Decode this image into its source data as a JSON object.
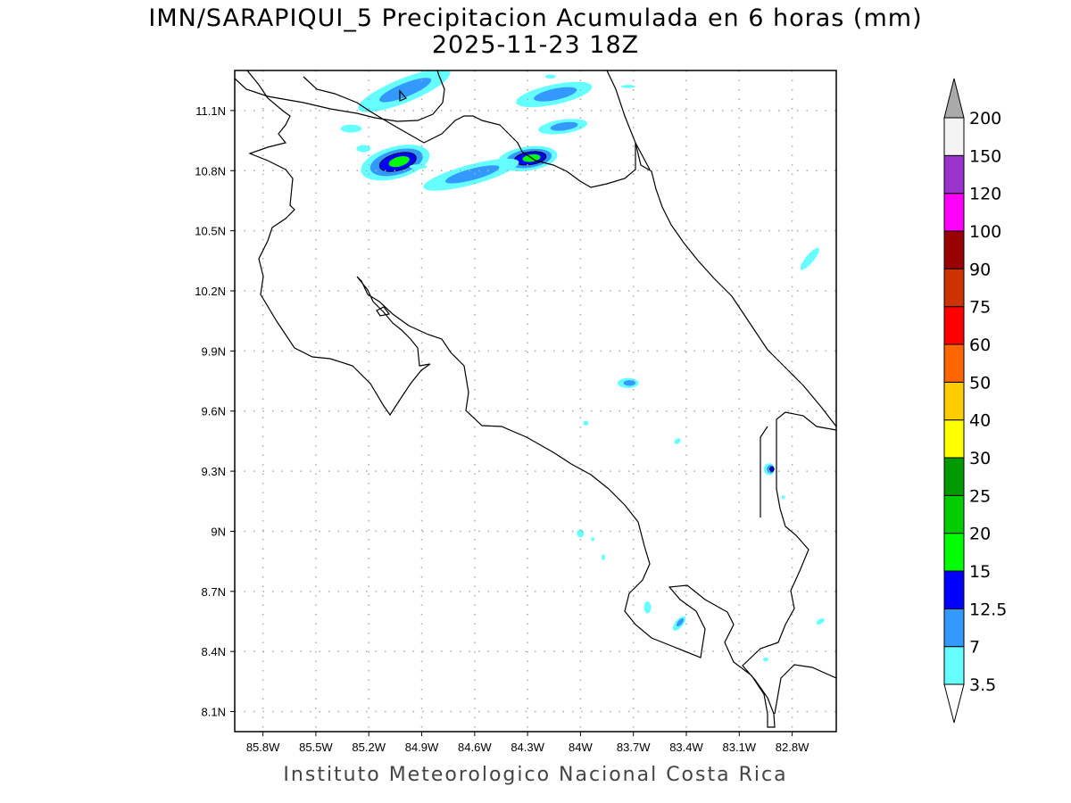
{
  "title": {
    "line1": "IMN/SARAPIQUI_5 Precipitacion Acumulada en 6 horas (mm)",
    "line2": "2025-11-23 18Z"
  },
  "footer": "Instituto Meteorologico Nacional Costa Rica",
  "map": {
    "lon_range": [
      -85.96,
      -82.55
    ],
    "lat_range": [
      8.0,
      11.3
    ],
    "grid": true,
    "lon_ticks": [
      {
        "value": -85.8,
        "label": "85.8W"
      },
      {
        "value": -85.5,
        "label": "85.5W"
      },
      {
        "value": -85.2,
        "label": "85.2W"
      },
      {
        "value": -84.9,
        "label": "84.9W"
      },
      {
        "value": -84.6,
        "label": "84.6W"
      },
      {
        "value": -84.3,
        "label": "84.3W"
      },
      {
        "value": -84.0,
        "label": "84W"
      },
      {
        "value": -83.7,
        "label": "83.7W"
      },
      {
        "value": -83.4,
        "label": "83.4W"
      },
      {
        "value": -83.1,
        "label": "83.1W"
      },
      {
        "value": -82.8,
        "label": "82.8W"
      }
    ],
    "lat_ticks": [
      {
        "value": 11.1,
        "label": "11.1N"
      },
      {
        "value": 10.8,
        "label": "10.8N"
      },
      {
        "value": 10.5,
        "label": "10.5N"
      },
      {
        "value": 10.2,
        "label": "10.2N"
      },
      {
        "value": 9.9,
        "label": "9.9N"
      },
      {
        "value": 9.6,
        "label": "9.6N"
      },
      {
        "value": 9.3,
        "label": "9.3N"
      },
      {
        "value": 9.0,
        "label": "9N"
      },
      {
        "value": 8.7,
        "label": "8.7N"
      },
      {
        "value": 8.4,
        "label": "8.4N"
      },
      {
        "value": 8.1,
        "label": "8.1N"
      }
    ],
    "precip_cells": [
      {
        "lon": -85.0,
        "lat": 11.2,
        "max_mm": 7,
        "rx": 0.28,
        "ry": 0.06,
        "angle": -22
      },
      {
        "lon": -85.05,
        "lat": 10.84,
        "max_mm": 15,
        "rx": 0.2,
        "ry": 0.08,
        "angle": -15
      },
      {
        "lon": -84.3,
        "lat": 10.86,
        "max_mm": 15,
        "rx": 0.17,
        "ry": 0.06,
        "angle": -8
      },
      {
        "lon": -84.62,
        "lat": 10.78,
        "max_mm": 7,
        "rx": 0.28,
        "ry": 0.05,
        "angle": -15
      },
      {
        "lon": -84.15,
        "lat": 11.18,
        "max_mm": 7,
        "rx": 0.22,
        "ry": 0.05,
        "angle": -12
      },
      {
        "lon": -84.1,
        "lat": 11.02,
        "max_mm": 7,
        "rx": 0.14,
        "ry": 0.035,
        "angle": -8
      },
      {
        "lon": -85.3,
        "lat": 11.01,
        "max_mm": 3.5,
        "rx": 0.06,
        "ry": 0.02,
        "angle": 0
      },
      {
        "lon": -85.23,
        "lat": 10.91,
        "max_mm": 3.5,
        "rx": 0.04,
        "ry": 0.018,
        "angle": 0
      },
      {
        "lon": -84.92,
        "lat": 10.82,
        "max_mm": 3.5,
        "rx": 0.05,
        "ry": 0.012,
        "angle": 0
      },
      {
        "lon": -84.17,
        "lat": 11.27,
        "max_mm": 3.5,
        "rx": 0.03,
        "ry": 0.01,
        "angle": 0
      },
      {
        "lon": -83.73,
        "lat": 9.74,
        "max_mm": 7,
        "rx": 0.06,
        "ry": 0.025,
        "angle": 0
      },
      {
        "lon": -82.93,
        "lat": 9.31,
        "max_mm": 12.5,
        "rx": 0.03,
        "ry": 0.03,
        "angle": 0
      },
      {
        "lon": -82.7,
        "lat": 10.36,
        "max_mm": 3.5,
        "rx": 0.08,
        "ry": 0.02,
        "angle": -50
      },
      {
        "lon": -83.45,
        "lat": 9.45,
        "max_mm": 3.5,
        "rx": 0.02,
        "ry": 0.012,
        "angle": -40
      },
      {
        "lon": -83.97,
        "lat": 9.54,
        "max_mm": 3.5,
        "rx": 0.015,
        "ry": 0.012,
        "angle": 0
      },
      {
        "lon": -84.0,
        "lat": 8.99,
        "max_mm": 3.5,
        "rx": 0.02,
        "ry": 0.02,
        "angle": 0
      },
      {
        "lon": -83.93,
        "lat": 8.96,
        "max_mm": 3.5,
        "rx": 0.01,
        "ry": 0.01,
        "angle": 0
      },
      {
        "lon": -83.87,
        "lat": 8.87,
        "max_mm": 3.5,
        "rx": 0.01,
        "ry": 0.015,
        "angle": 0
      },
      {
        "lon": -83.62,
        "lat": 8.62,
        "max_mm": 3.5,
        "rx": 0.02,
        "ry": 0.03,
        "angle": 0
      },
      {
        "lon": -83.44,
        "lat": 8.54,
        "max_mm": 7,
        "rx": 0.05,
        "ry": 0.02,
        "angle": -50
      },
      {
        "lon": -82.64,
        "lat": 8.55,
        "max_mm": 3.5,
        "rx": 0.025,
        "ry": 0.012,
        "angle": -30
      },
      {
        "lon": -82.85,
        "lat": 9.17,
        "max_mm": 3.5,
        "rx": 0.01,
        "ry": 0.01,
        "angle": 0
      },
      {
        "lon": -82.95,
        "lat": 8.36,
        "max_mm": 3.5,
        "rx": 0.015,
        "ry": 0.01,
        "angle": 0
      },
      {
        "lon": -83.73,
        "lat": 11.22,
        "max_mm": 3.5,
        "rx": 0.04,
        "ry": 0.008,
        "angle": 0
      }
    ]
  },
  "colorbar": {
    "levels": [
      {
        "label": "3.5",
        "color": "#66ffff"
      },
      {
        "label": "7",
        "color": "#3399ff"
      },
      {
        "label": "12.5",
        "color": "#0000ff"
      },
      {
        "label": "15",
        "color": "#00ff00"
      },
      {
        "label": "20",
        "color": "#00cc00"
      },
      {
        "label": "25",
        "color": "#009900"
      },
      {
        "label": "30",
        "color": "#ffff00"
      },
      {
        "label": "40",
        "color": "#ffcc00"
      },
      {
        "label": "50",
        "color": "#ff6600"
      },
      {
        "label": "60",
        "color": "#ff0000"
      },
      {
        "label": "75",
        "color": "#cc3300"
      },
      {
        "label": "90",
        "color": "#990000"
      },
      {
        "label": "100",
        "color": "#ff00ff"
      },
      {
        "label": "120",
        "color": "#9933cc"
      },
      {
        "label": "150",
        "color": "#f4f4f4"
      },
      {
        "label": "200",
        "color": "#aaaaaa"
      }
    ],
    "below_color": "#ffffff"
  }
}
